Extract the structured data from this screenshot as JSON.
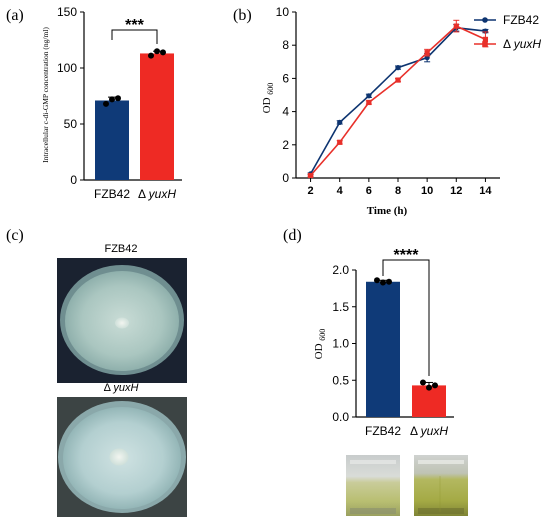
{
  "panels": {
    "a": "(a)",
    "b": "(b)",
    "c": "(c)",
    "d": "(d)"
  },
  "colors": {
    "fzb42": "#0f3a78",
    "yuxh": "#ee2a24",
    "line_fzb42": "#0d3470",
    "line_yuxh": "#e8302a"
  },
  "chart_data": [
    {
      "type": "bar",
      "panel": "a",
      "ylabel": "Intracellular c-di-GMP concentration (ng/ml)",
      "xlabel": "",
      "categories": [
        "FZB42",
        "Δ yuxH"
      ],
      "values": [
        71,
        113
      ],
      "errors": [
        3,
        2
      ],
      "points": [
        [
          68,
          72,
          73
        ],
        [
          111,
          115,
          114
        ]
      ],
      "ylim": [
        0,
        150
      ],
      "yticks": [
        "0",
        "50",
        "100",
        "150"
      ],
      "significance": "***"
    },
    {
      "type": "line",
      "panel": "b",
      "ylabel": "OD 600",
      "xlabel": "Time (h)",
      "x": [
        2,
        4,
        6,
        8,
        10,
        12,
        14
      ],
      "xlim": [
        1,
        15
      ],
      "ylim": [
        0,
        10
      ],
      "xticks": [
        "2",
        "4",
        "6",
        "8",
        "10",
        "12",
        "14"
      ],
      "yticks": [
        "0",
        "2",
        "4",
        "6",
        "8",
        "10"
      ],
      "legend_position": "top-right",
      "series": [
        {
          "name": "FZB42",
          "marker": "circle",
          "values": [
            0.25,
            3.35,
            4.95,
            6.65,
            7.25,
            9.05,
            8.85
          ],
          "errors": [
            0.05,
            0.1,
            0.1,
            0.1,
            0.25,
            0.2,
            0.1
          ]
        },
        {
          "name": "Δ yuxH",
          "marker": "square",
          "values": [
            0.15,
            2.15,
            4.55,
            5.9,
            7.55,
            9.15,
            8.35
          ],
          "errors": [
            0.05,
            0.1,
            0.1,
            0.1,
            0.2,
            0.35,
            0.45
          ]
        }
      ]
    },
    {
      "type": "bar",
      "panel": "d",
      "ylabel": "OD 600",
      "xlabel": "",
      "categories": [
        "FZB42",
        "Δ yuxH"
      ],
      "values": [
        1.84,
        0.43
      ],
      "errors": [
        0.02,
        0.04
      ],
      "points": [
        [
          1.86,
          1.83,
          1.84
        ],
        [
          0.47,
          0.4,
          0.43
        ]
      ],
      "ylim": [
        0,
        2.0
      ],
      "yticks": [
        "0.0",
        "0.5",
        "1.0",
        "1.5",
        "2.0"
      ],
      "significance": "****"
    }
  ],
  "photos": {
    "top_label": "FZB42",
    "bottom_label": "Δ yuxH"
  }
}
